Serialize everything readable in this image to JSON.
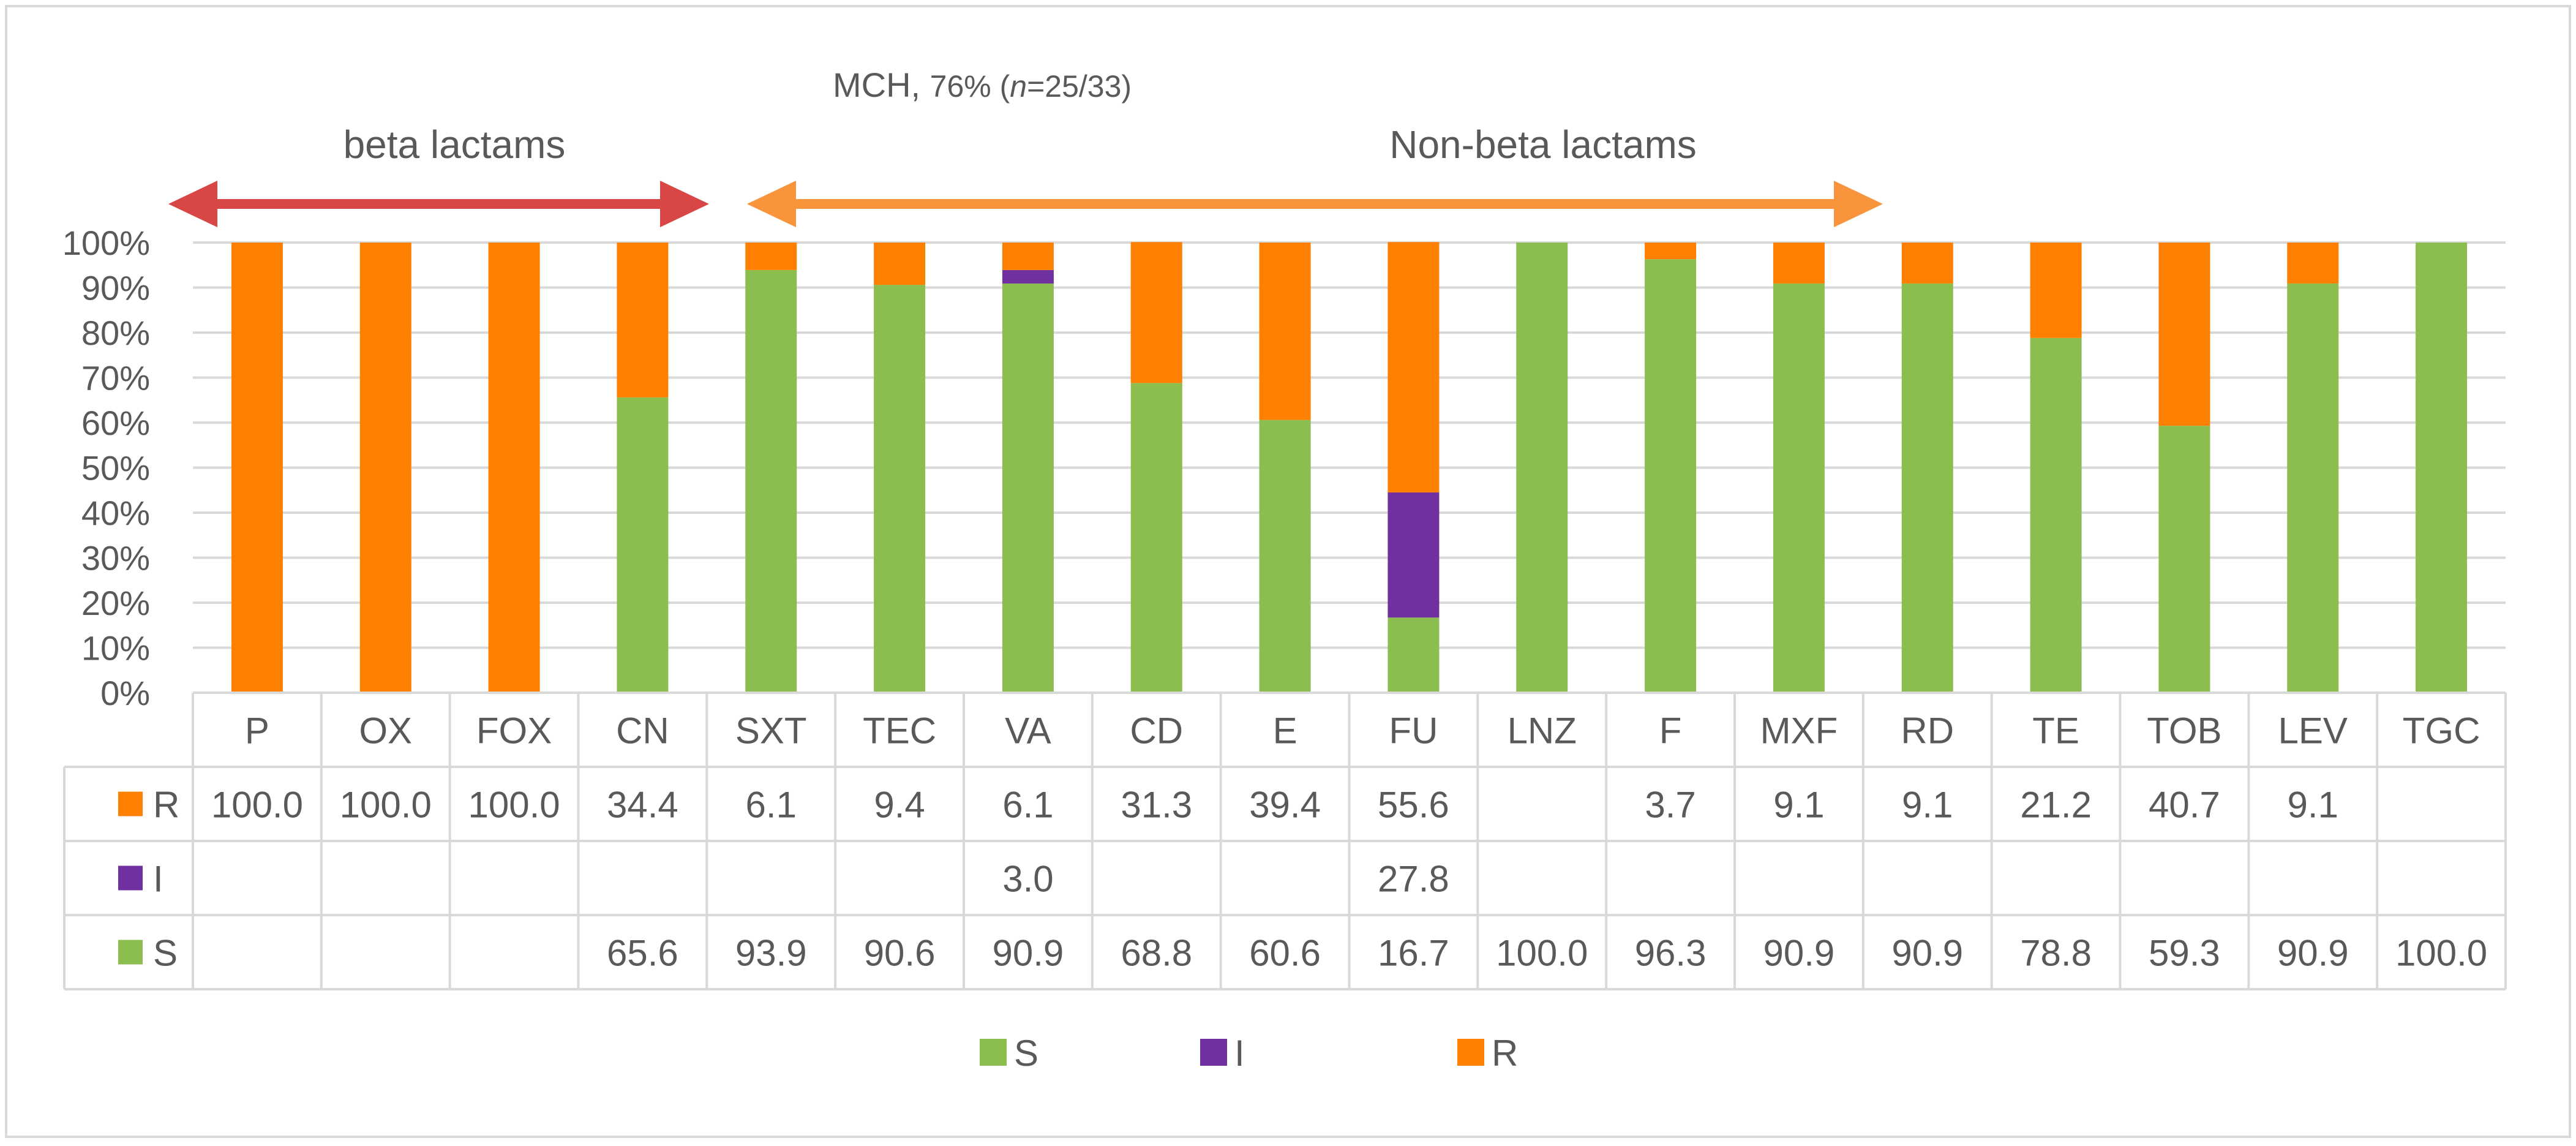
{
  "colors": {
    "S": "#8BBD4F",
    "I": "#7030A0",
    "R": "#FF7F00",
    "beta_arrow": "#D94646",
    "nonbeta_arrow": "#F7943C",
    "grid": "#D9D9D9",
    "text": "#595959",
    "border": "#D9D9D9"
  },
  "chart_data": {
    "type": "bar",
    "stacked": true,
    "title": "MCH, 76% (n=25/33)",
    "title_parts": {
      "main": "MCH, ",
      "pct": "76% (",
      "n": "n",
      "rest": "=25/33)"
    },
    "annotations": {
      "beta_label": "beta lactams",
      "nonbeta_label": "Non-beta lactams"
    },
    "categories": [
      "P",
      "OX",
      "FOX",
      "CN",
      "SXT",
      "TEC",
      "VA",
      "CD",
      "E",
      "FU",
      "LNZ",
      "F",
      "MXF",
      "RD",
      "TE",
      "TOB",
      "LEV",
      "TGC"
    ],
    "series": [
      {
        "name": "S",
        "values": [
          null,
          null,
          null,
          65.6,
          93.9,
          90.6,
          90.9,
          68.8,
          60.6,
          16.7,
          100.0,
          96.3,
          90.9,
          90.9,
          78.8,
          59.3,
          90.9,
          100.0
        ]
      },
      {
        "name": "I",
        "values": [
          null,
          null,
          null,
          null,
          null,
          null,
          3.0,
          null,
          null,
          27.8,
          null,
          null,
          null,
          null,
          null,
          null,
          null,
          null
        ]
      },
      {
        "name": "R",
        "values": [
          100.0,
          100.0,
          100.0,
          34.4,
          6.1,
          9.4,
          6.1,
          31.3,
          39.4,
          55.6,
          null,
          3.7,
          9.1,
          9.1,
          21.2,
          40.7,
          9.1,
          null
        ]
      }
    ],
    "y_ticks": [
      "0%",
      "10%",
      "20%",
      "30%",
      "40%",
      "50%",
      "60%",
      "70%",
      "80%",
      "90%",
      "100%"
    ],
    "ylim": [
      0,
      100
    ],
    "table_rows": [
      {
        "key": "R",
        "label": "R",
        "cells": [
          "100.0",
          "100.0",
          "100.0",
          "34.4",
          "6.1",
          "9.4",
          "6.1",
          "31.3",
          "39.4",
          "55.6",
          "",
          "3.7",
          "9.1",
          "9.1",
          "21.2",
          "40.7",
          "9.1",
          ""
        ]
      },
      {
        "key": "I",
        "label": "I",
        "cells": [
          "",
          "",
          "",
          "",
          "",
          "",
          "3.0",
          "",
          "",
          "27.8",
          "",
          "",
          "",
          "",
          "",
          "",
          "",
          ""
        ]
      },
      {
        "key": "S",
        "label": "S",
        "cells": [
          "",
          "",
          "",
          "65.6",
          "93.9",
          "90.6",
          "90.9",
          "68.8",
          "60.6",
          "16.7",
          "100.0",
          "96.3",
          "90.9",
          "90.9",
          "78.8",
          "59.3",
          "90.9",
          "100.0"
        ]
      }
    ],
    "legend": [
      {
        "key": "S",
        "label": "S"
      },
      {
        "key": "I",
        "label": "I"
      },
      {
        "key": "R",
        "label": "R"
      }
    ],
    "legend_position": "bottom"
  }
}
